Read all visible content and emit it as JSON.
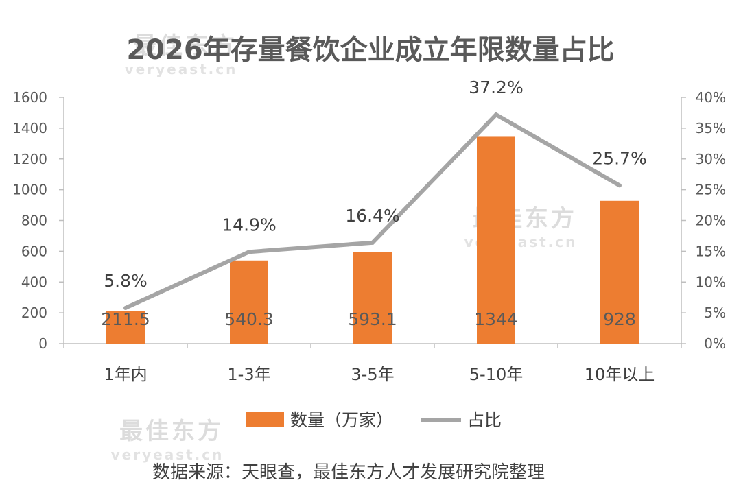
{
  "chart_data": {
    "type": "bar",
    "title": "2026年存量餐饮企业成立年限数量占比",
    "categories": [
      "1年内",
      "1-3年",
      "3-5年",
      "5-10年",
      "10年以上"
    ],
    "series": [
      {
        "name": "数量（万家）",
        "type": "bar",
        "axis": "left",
        "color": "#ED7D31",
        "values": [
          211.5,
          540.3,
          593.1,
          1344,
          928
        ],
        "labels": [
          "211.5",
          "540.3",
          "593.1",
          "1344",
          "928"
        ]
      },
      {
        "name": "占比",
        "type": "line",
        "axis": "right",
        "color": "#A5A5A5",
        "values": [
          5.8,
          14.9,
          16.4,
          37.2,
          25.7
        ],
        "labels": [
          "5.8%",
          "14.9%",
          "16.4%",
          "37.2%",
          "25.7%"
        ]
      }
    ],
    "y_left": {
      "min": 0,
      "max": 1600,
      "ticks": [
        "0",
        "200",
        "400",
        "600",
        "800",
        "1000",
        "1200",
        "1400",
        "1600"
      ]
    },
    "y_right": {
      "min": 0,
      "max": 40,
      "ticks": [
        "0%",
        "5%",
        "10%",
        "15%",
        "20%",
        "25%",
        "30%",
        "35%",
        "40%"
      ]
    },
    "grid": false,
    "legend_position": "bottom"
  },
  "source": "数据来源：天眼查，最佳东方人才发展研究院整理",
  "watermark": {
    "brand": "最佳东方",
    "site": "veryeast.cn"
  }
}
